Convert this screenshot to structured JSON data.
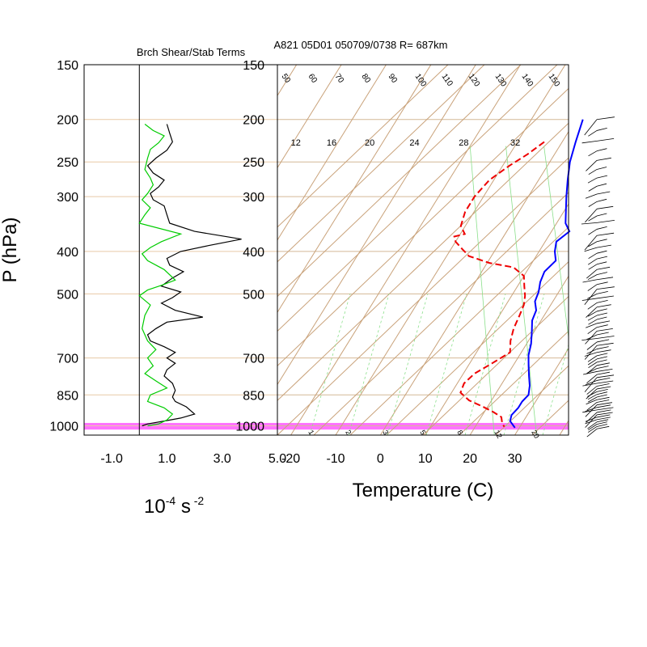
{
  "chart_data": [
    {
      "type": "line",
      "panel": "shear-stability",
      "title": "Brch Shear/Stab Terms",
      "xlabel_base": "10",
      "xlabel_exp": "-4",
      "xlabel_unit": "s",
      "xlabel_unit_exp": "-2",
      "ylabel": "P (hPa)",
      "x_ticks": [
        "-1.0",
        "1.0",
        "3.0",
        "5.0"
      ],
      "x_tick_values": [
        -1,
        1,
        3,
        5
      ],
      "xlim": [
        -2.0,
        5.0
      ],
      "y_ticks": [
        "150",
        "200",
        "250",
        "300",
        "400",
        "500",
        "700",
        "850",
        "1000"
      ],
      "y_tick_values": [
        150,
        200,
        250,
        300,
        400,
        500,
        700,
        850,
        1000
      ],
      "ylim": [
        150,
        1050
      ],
      "y_scale": "log",
      "grid": "horizontal",
      "series": [
        {
          "color": "#000000",
          "points": [
            [
              1.0,
              205
            ],
            [
              1.1,
              215
            ],
            [
              1.2,
              225
            ],
            [
              1.0,
              235
            ],
            [
              0.6,
              245
            ],
            [
              0.3,
              255
            ],
            [
              0.5,
              265
            ],
            [
              0.9,
              275
            ],
            [
              0.7,
              285
            ],
            [
              0.4,
              295
            ],
            [
              0.5,
              305
            ],
            [
              0.9,
              315
            ],
            [
              1.0,
              330
            ],
            [
              1.1,
              345
            ],
            [
              2.0,
              360
            ],
            [
              3.7,
              375
            ],
            [
              2.5,
              388
            ],
            [
              1.5,
              400
            ],
            [
              1.0,
              415
            ],
            [
              1.1,
              430
            ],
            [
              1.6,
              445
            ],
            [
              1.2,
              460
            ],
            [
              0.8,
              480
            ],
            [
              1.5,
              495
            ],
            [
              1.2,
              510
            ],
            [
              0.8,
              525
            ],
            [
              1.3,
              545
            ],
            [
              2.3,
              565
            ],
            [
              1.0,
              580
            ],
            [
              0.6,
              600
            ],
            [
              0.3,
              620
            ],
            [
              0.4,
              640
            ],
            [
              0.9,
              660
            ],
            [
              1.3,
              680
            ],
            [
              1.0,
              700
            ],
            [
              1.3,
              720
            ],
            [
              1.0,
              745
            ],
            [
              0.9,
              770
            ],
            [
              1.2,
              800
            ],
            [
              1.3,
              830
            ],
            [
              1.2,
              860
            ],
            [
              1.3,
              880
            ],
            [
              1.7,
              905
            ],
            [
              2.0,
              940
            ],
            [
              1.5,
              960
            ],
            [
              0.9,
              975
            ],
            [
              0.3,
              990
            ],
            [
              0.1,
              1000
            ]
          ]
        },
        {
          "color": "#00cc00",
          "points": [
            [
              0.2,
              205
            ],
            [
              0.5,
              212
            ],
            [
              0.9,
              218
            ],
            [
              0.7,
              226
            ],
            [
              0.4,
              234
            ],
            [
              0.3,
              245
            ],
            [
              0.2,
              260
            ],
            [
              0.4,
              272
            ],
            [
              0.5,
              282
            ],
            [
              0.3,
              295
            ],
            [
              0.1,
              305
            ],
            [
              0.4,
              318
            ],
            [
              0.2,
              330
            ],
            [
              0.0,
              345
            ],
            [
              1.5,
              365
            ],
            [
              0.8,
              380
            ],
            [
              0.4,
              392
            ],
            [
              0.1,
              405
            ],
            [
              0.3,
              420
            ],
            [
              0.9,
              440
            ],
            [
              1.3,
              465
            ],
            [
              0.8,
              478
            ],
            [
              0.3,
              490
            ],
            [
              0.0,
              505
            ],
            [
              0.4,
              530
            ],
            [
              0.2,
              560
            ],
            [
              0.1,
              600
            ],
            [
              0.3,
              640
            ],
            [
              0.6,
              670
            ],
            [
              0.3,
              700
            ],
            [
              0.5,
              730
            ],
            [
              0.2,
              760
            ],
            [
              0.6,
              790
            ],
            [
              1.0,
              820
            ],
            [
              0.4,
              850
            ],
            [
              0.3,
              880
            ],
            [
              0.9,
              910
            ],
            [
              1.2,
              940
            ],
            [
              1.0,
              970
            ],
            [
              0.7,
              990
            ],
            [
              0.3,
              1000
            ]
          ]
        }
      ]
    },
    {
      "type": "line",
      "panel": "skew-t",
      "title": "A821 05D01 050709/0738 R= 687km",
      "xlabel": "Temperature (C)",
      "x_ticks": [
        "-20",
        "-10",
        "0",
        "10",
        "20",
        "30"
      ],
      "x_tick_values": [
        -20,
        -10,
        0,
        10,
        20,
        30
      ],
      "xlim": [
        -23,
        42
      ],
      "y_ticks": [
        "150",
        "200",
        "250",
        "300",
        "400",
        "500",
        "700",
        "850",
        "1000"
      ],
      "y_tick_values": [
        150,
        200,
        250,
        300,
        400,
        500,
        700,
        850,
        1000
      ],
      "ylim": [
        150,
        1050
      ],
      "y_scale": "log",
      "mixing_ratio_labels": [
        "12",
        "16",
        "20",
        "24",
        "28",
        "32"
      ],
      "mixing_ratio_label_x": [
        -20,
        -12,
        -3.5,
        6.5,
        17.5,
        29
      ],
      "isotherm_labels": [
        "50",
        "60",
        "70",
        "80",
        "90",
        "100",
        "110",
        "120",
        "130",
        "140",
        "150"
      ],
      "lower_labels": [
        "1",
        "2",
        "3",
        "5",
        "8",
        "12",
        "20"
      ],
      "highlight_band": {
        "p_top": 985,
        "p_bottom": 1020,
        "color": "#ff44ff"
      },
      "series": [
        {
          "name": "",
          "color": "#0000ff",
          "dash": "solid",
          "points": [
            [
              1.5,
              200
            ],
            [
              3.0,
              225
            ],
            [
              4.5,
              250
            ],
            [
              6.5,
              275
            ],
            [
              8.5,
              300
            ],
            [
              10.5,
              325
            ],
            [
              12.0,
              345
            ],
            [
              14.0,
              360
            ],
            [
              12.5,
              380
            ],
            [
              13.5,
              400
            ],
            [
              15.0,
              420
            ],
            [
              14.0,
              445
            ],
            [
              14.5,
              470
            ],
            [
              15.5,
              495
            ],
            [
              16.0,
              520
            ],
            [
              17.5,
              545
            ],
            [
              18.0,
              575
            ],
            [
              19.5,
              610
            ],
            [
              21.0,
              650
            ],
            [
              22.0,
              690
            ],
            [
              23.5,
              730
            ],
            [
              25.0,
              770
            ],
            [
              26.5,
              810
            ],
            [
              27.5,
              850
            ],
            [
              27.0,
              880
            ],
            [
              27.0,
              910
            ],
            [
              26.5,
              945
            ],
            [
              27.0,
              975
            ],
            [
              29.0,
              1010
            ]
          ]
        },
        {
          "name": "",
          "color": "#ee0000",
          "dash": "dashed",
          "points": [
            [
              -4.0,
              225
            ],
            [
              -6.0,
              240
            ],
            [
              -8.5,
              255
            ],
            [
              -11.0,
              275
            ],
            [
              -12.0,
              300
            ],
            [
              -12.0,
              325
            ],
            [
              -11.0,
              350
            ],
            [
              -9.0,
              365
            ],
            [
              -11.0,
              370
            ],
            [
              -10.0,
              380
            ],
            [
              -7.5,
              395
            ],
            [
              -5.0,
              410
            ],
            [
              0.5,
              425
            ],
            [
              6.5,
              435
            ],
            [
              10.0,
              455
            ],
            [
              11.5,
              480
            ],
            [
              13.0,
              505
            ],
            [
              14.0,
              530
            ],
            [
              14.5,
              560
            ],
            [
              15.0,
              600
            ],
            [
              16.0,
              640
            ],
            [
              17.5,
              680
            ],
            [
              15.0,
              720
            ],
            [
              12.5,
              760
            ],
            [
              11.5,
              800
            ],
            [
              12.0,
              840
            ],
            [
              15.0,
              875
            ],
            [
              19.0,
              905
            ],
            [
              22.0,
              930
            ],
            [
              24.5,
              955
            ],
            [
              25.5,
              985
            ],
            [
              26.5,
              1005
            ]
          ]
        }
      ]
    },
    {
      "type": "wind-barbs",
      "panel": "wind-profile",
      "p_range": [
        200,
        1020
      ]
    }
  ]
}
